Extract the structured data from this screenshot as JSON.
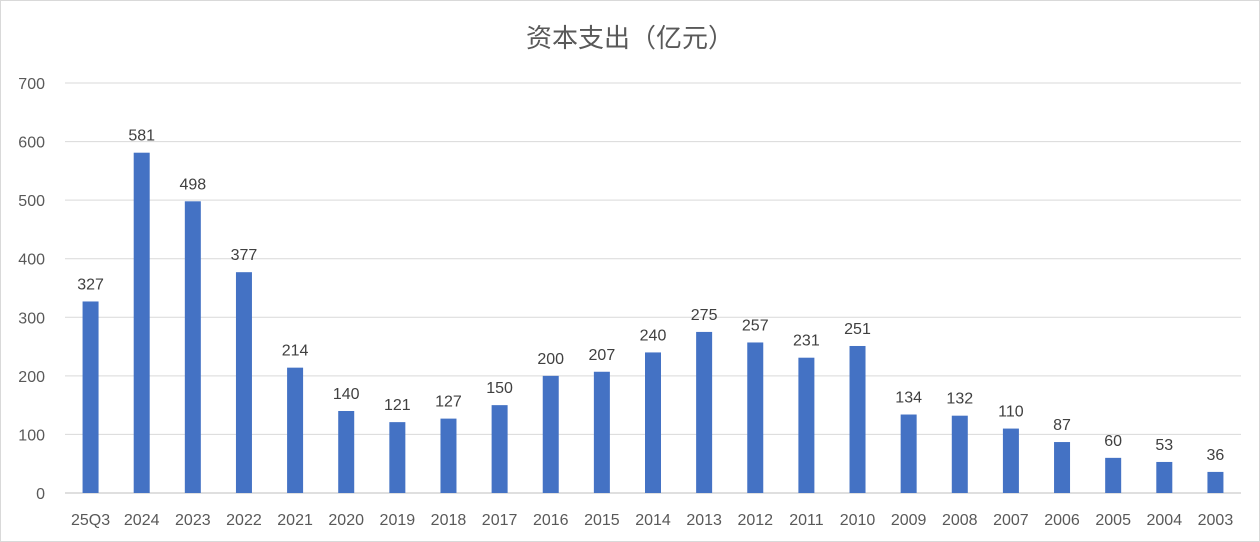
{
  "chart_data": {
    "type": "bar",
    "title": "资本支出（亿元）",
    "categories": [
      "25Q3",
      "2024",
      "2023",
      "2022",
      "2021",
      "2020",
      "2019",
      "2018",
      "2017",
      "2016",
      "2015",
      "2014",
      "2013",
      "2012",
      "2011",
      "2010",
      "2009",
      "2008",
      "2007",
      "2006",
      "2005",
      "2004",
      "2003"
    ],
    "series": [
      {
        "values": [
          327,
          581,
          498,
          377,
          214,
          140,
          121,
          127,
          150,
          200,
          207,
          240,
          275,
          257,
          231,
          251,
          134,
          132,
          110,
          87,
          60,
          53,
          36
        ]
      }
    ],
    "ylim": [
      0,
      700
    ],
    "yticks": [
      "0",
      "100",
      "200",
      "300",
      "400",
      "500",
      "600",
      "700"
    ],
    "grid": true,
    "legend": "none",
    "bar_color": "#4472C4"
  }
}
